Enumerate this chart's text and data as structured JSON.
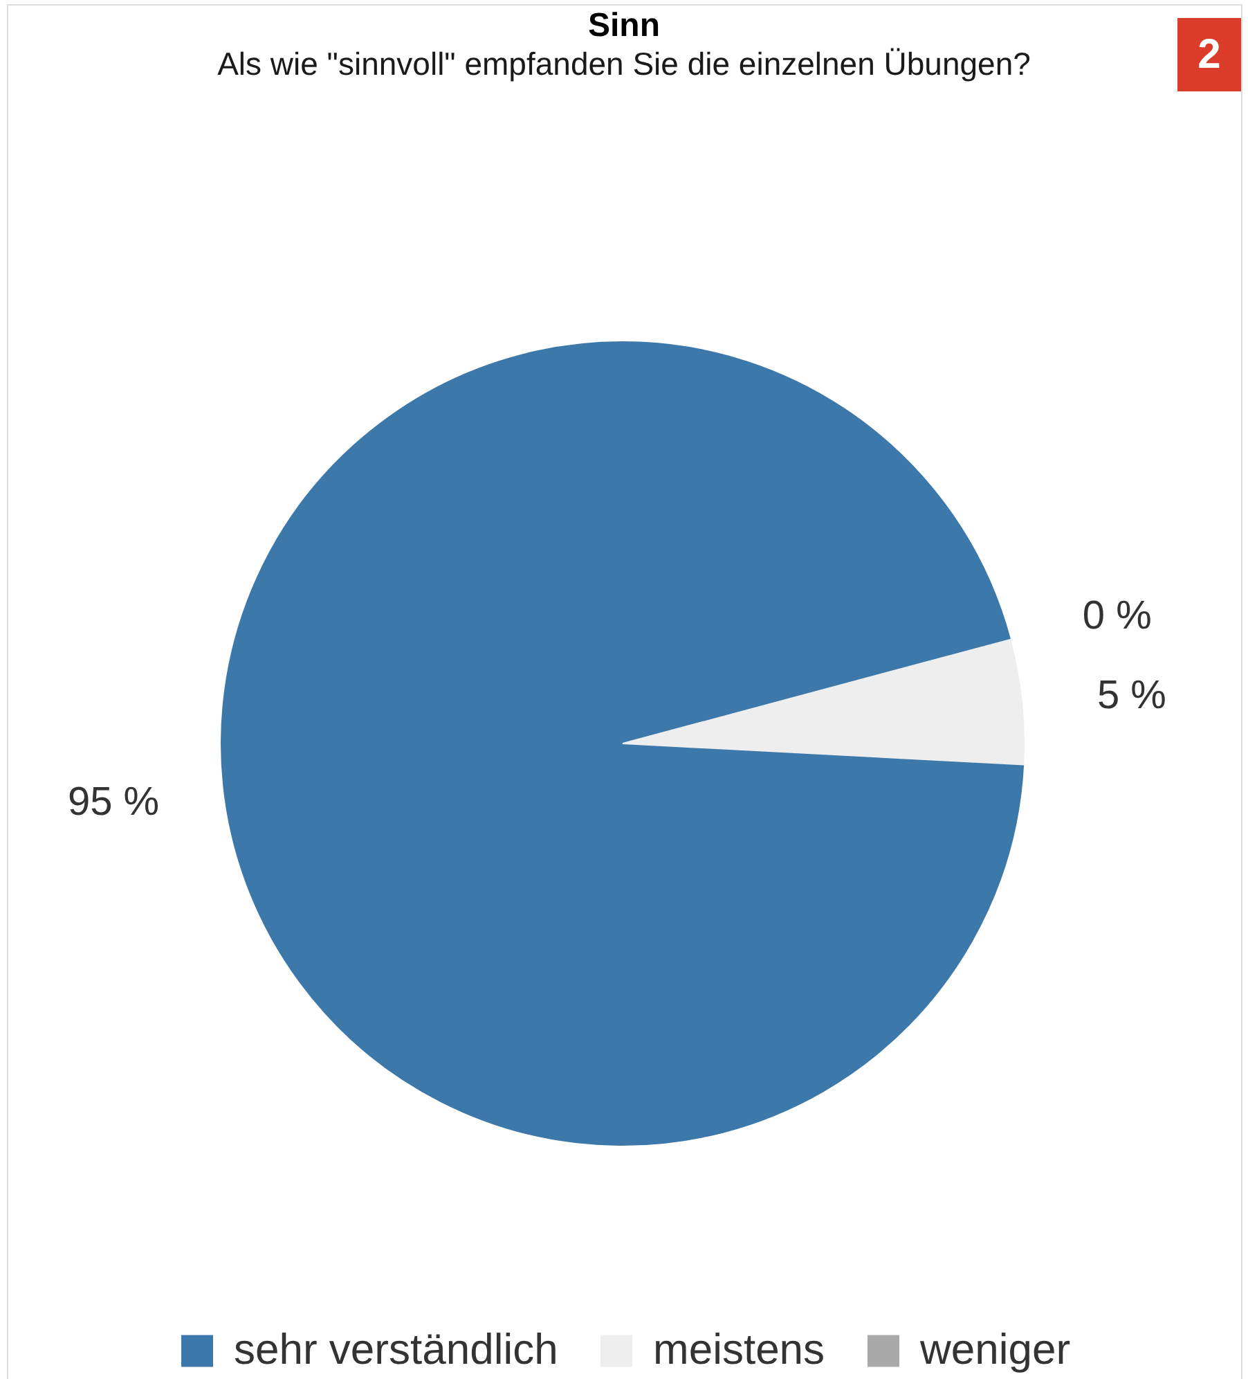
{
  "chart_data": {
    "type": "pie",
    "title": "Sinn",
    "subtitle": "Als wie \"sinnvoll\" empfanden Sie die einzelnen Übungen?",
    "categories": [
      "sehr verständlich",
      "meistens",
      "weniger"
    ],
    "values": [
      95,
      5,
      0
    ],
    "colors": [
      "#3d78ab",
      "#eeeeee",
      "#a9a9a9"
    ],
    "value_labels": [
      "95 %",
      "5 %",
      "0 %"
    ],
    "legend": "bottom",
    "annotations": [
      "2"
    ]
  }
}
